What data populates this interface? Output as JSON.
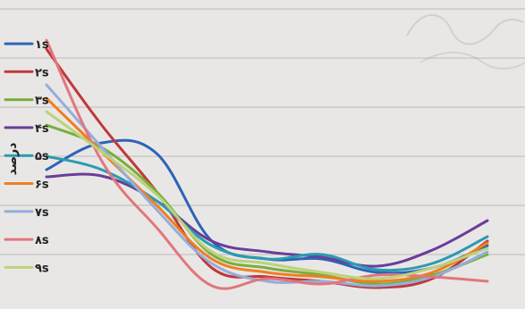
{
  "chart_data": {
    "type": "line",
    "ylabel": "درصد",
    "grid": true,
    "legend_position": "left",
    "series": [
      {
        "name": "۱s",
        "color": "#2f64b8",
        "values": [
          190,
          160,
          172,
          270,
          290,
          290,
          305,
          300,
          275
        ]
      },
      {
        "name": "۲s",
        "color": "#c0393b",
        "values": [
          55,
          140,
          215,
          300,
          310,
          315,
          322,
          312,
          270
        ]
      },
      {
        "name": "۳s",
        "color": "#79ae3c",
        "values": [
          140,
          165,
          215,
          285,
          300,
          308,
          318,
          308,
          285
        ]
      },
      {
        "name": "۴s",
        "color": "#6a3d9a",
        "values": [
          198,
          197,
          225,
          270,
          282,
          288,
          298,
          280,
          247
        ]
      },
      {
        "name": "۵s",
        "color": "#2a9bb2",
        "values": [
          175,
          190,
          225,
          275,
          290,
          285,
          302,
          295,
          265
        ]
      },
      {
        "name": "۶s",
        "color": "#f07e22",
        "values": [
          110,
          170,
          230,
          290,
          305,
          310,
          315,
          305,
          272
        ]
      },
      {
        "name": "۷s",
        "color": "#93aedc",
        "values": [
          95,
          165,
          235,
          295,
          315,
          315,
          320,
          310,
          282
        ]
      },
      {
        "name": "۸s",
        "color": "#e0777d",
        "values": [
          45,
          180,
          255,
          320,
          312,
          318,
          308,
          310,
          315
        ]
      },
      {
        "name": "۹s",
        "color": "#bcd27a",
        "values": [
          125,
          170,
          218,
          282,
          295,
          305,
          312,
          300,
          278
        ]
      }
    ]
  }
}
